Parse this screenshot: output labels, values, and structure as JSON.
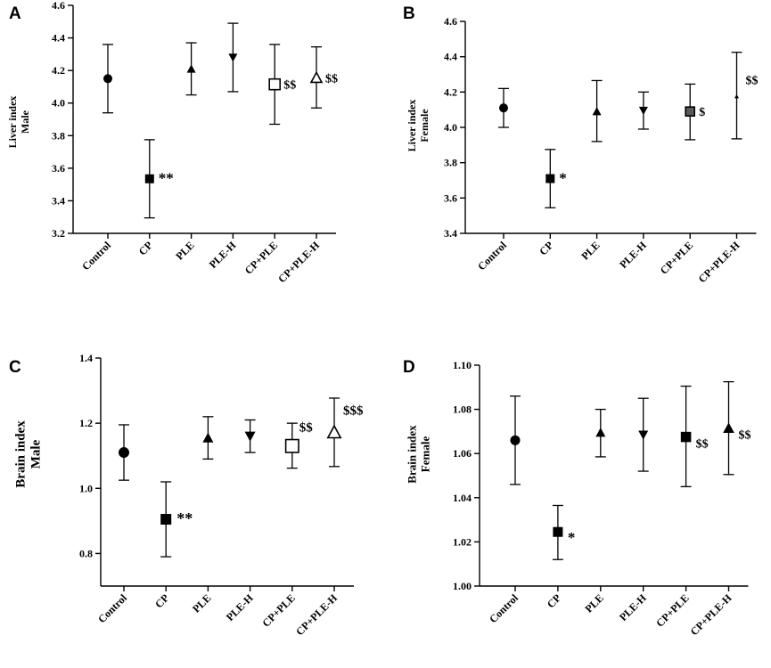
{
  "chart_data": [
    {
      "panel": "A",
      "type": "scatter",
      "title": "",
      "ylabel": [
        "Liver index",
        "Male"
      ],
      "categories": [
        "Control",
        "CP",
        "PLE",
        "PLE-H",
        "CP+PLE",
        "CP+PLE-H"
      ],
      "ylim": [
        3.2,
        4.6
      ],
      "yticks": [
        3.2,
        3.4,
        3.6,
        3.8,
        4.0,
        4.2,
        4.4,
        4.6
      ],
      "ytick_labels": [
        "3.2",
        "3.4",
        "3.6",
        "3.8",
        "4.0",
        "4.2",
        "4.4",
        "4.6"
      ],
      "series": [
        {
          "name": "Control",
          "marker": "circle",
          "mean": 4.15,
          "low": 3.94,
          "high": 4.36,
          "annotation": ""
        },
        {
          "name": "CP",
          "marker": "square",
          "mean": 3.535,
          "low": 3.295,
          "high": 3.775,
          "annotation": "**"
        },
        {
          "name": "PLE",
          "marker": "triangle-up",
          "mean": 4.21,
          "low": 4.05,
          "high": 4.37,
          "annotation": ""
        },
        {
          "name": "PLE-H",
          "marker": "triangle-down",
          "mean": 4.28,
          "low": 4.07,
          "high": 4.49,
          "annotation": ""
        },
        {
          "name": "CP+PLE",
          "marker": "square-open",
          "mean": 4.115,
          "low": 3.87,
          "high": 4.36,
          "annotation": "$$"
        },
        {
          "name": "CP+PLE-H",
          "marker": "triangle-open",
          "mean": 4.155,
          "low": 3.97,
          "high": 4.345,
          "annotation": "$$"
        }
      ]
    },
    {
      "panel": "B",
      "type": "scatter",
      "title": "",
      "ylabel": [
        "Liver index",
        "Female"
      ],
      "categories": [
        "Control",
        "CP",
        "PLE",
        "PLE-H",
        "CP+PLE",
        "CP+PLE-H"
      ],
      "ylim": [
        3.4,
        4.6
      ],
      "yticks": [
        3.4,
        3.6,
        3.8,
        4.0,
        4.2,
        4.4,
        4.6
      ],
      "ytick_labels": [
        "3.4",
        "3.6",
        "3.8",
        "4.0",
        "4.2",
        "4.4",
        "4.6"
      ],
      "series": [
        {
          "name": "Control",
          "marker": "circle",
          "mean": 4.11,
          "low": 4.0,
          "high": 4.22,
          "annotation": ""
        },
        {
          "name": "CP",
          "marker": "square",
          "mean": 3.71,
          "low": 3.545,
          "high": 3.875,
          "annotation": "*"
        },
        {
          "name": "PLE",
          "marker": "triangle-up",
          "mean": 4.09,
          "low": 3.92,
          "high": 4.265,
          "annotation": ""
        },
        {
          "name": "PLE-H",
          "marker": "triangle-down",
          "mean": 4.095,
          "low": 3.99,
          "high": 4.2,
          "annotation": ""
        },
        {
          "name": "CP+PLE",
          "marker": "square-gray",
          "mean": 4.09,
          "low": 3.93,
          "high": 4.245,
          "annotation": "$"
        },
        {
          "name": "CP+PLE-H",
          "marker": "triangle-small",
          "mean": 4.175,
          "low": 3.935,
          "high": 4.425,
          "annotation": "$$"
        }
      ]
    },
    {
      "panel": "C",
      "type": "scatter",
      "title": "",
      "ylabel": [
        "Brain index",
        "Male"
      ],
      "categories": [
        "Control",
        "CP",
        "PLE",
        "PLE-H",
        "CP+PLE",
        "CP+PLE-H"
      ],
      "ylim": [
        0.7,
        1.4
      ],
      "yticks": [
        0.8,
        1.0,
        1.2,
        1.4
      ],
      "ytick_labels": [
        "0.8",
        "1.0",
        "1.2",
        "1.4"
      ],
      "series": [
        {
          "name": "Control",
          "marker": "circle",
          "mean": 1.11,
          "low": 1.025,
          "high": 1.195,
          "annotation": ""
        },
        {
          "name": "CP",
          "marker": "square",
          "mean": 0.905,
          "low": 0.79,
          "high": 1.02,
          "annotation": "**"
        },
        {
          "name": "PLE",
          "marker": "triangle-up",
          "mean": 1.155,
          "low": 1.09,
          "high": 1.22,
          "annotation": ""
        },
        {
          "name": "PLE-H",
          "marker": "triangle-down",
          "mean": 1.16,
          "low": 1.11,
          "high": 1.21,
          "annotation": ""
        },
        {
          "name": "CP+PLE",
          "marker": "square-open",
          "mean": 1.13,
          "low": 1.062,
          "high": 1.2,
          "annotation": "$$"
        },
        {
          "name": "CP+PLE-H",
          "marker": "triangle-open",
          "mean": 1.172,
          "low": 1.067,
          "high": 1.277,
          "annotation": "$$$"
        }
      ]
    },
    {
      "panel": "D",
      "type": "scatter",
      "title": "",
      "ylabel": [
        "Brain index",
        "Female"
      ],
      "categories": [
        "Control",
        "CP",
        "PLE",
        "PLE-H",
        "CP+PLE",
        "CP+PLE-H"
      ],
      "ylim": [
        1.0,
        1.1
      ],
      "yticks": [
        1.0,
        1.02,
        1.04,
        1.06,
        1.08,
        1.1
      ],
      "ytick_labels": [
        "1.00",
        "1.02",
        "1.04",
        "1.06",
        "1.08",
        "1.10"
      ],
      "series": [
        {
          "name": "Control",
          "marker": "circle",
          "mean": 1.066,
          "low": 1.046,
          "high": 1.086,
          "annotation": ""
        },
        {
          "name": "CP",
          "marker": "square",
          "mean": 1.0245,
          "low": 1.012,
          "high": 1.0365,
          "annotation": "*"
        },
        {
          "name": "PLE",
          "marker": "triangle-up",
          "mean": 1.0695,
          "low": 1.0585,
          "high": 1.08,
          "annotation": ""
        },
        {
          "name": "PLE-H",
          "marker": "triangle-down",
          "mean": 1.0685,
          "low": 1.052,
          "high": 1.085,
          "annotation": ""
        },
        {
          "name": "CP+PLE",
          "marker": "square-large",
          "mean": 1.0675,
          "low": 1.045,
          "high": 1.0905,
          "annotation": "$$"
        },
        {
          "name": "CP+PLE-H",
          "marker": "triangle-up-large",
          "mean": 1.0715,
          "low": 1.0505,
          "high": 1.0925,
          "annotation": "$$"
        }
      ]
    }
  ]
}
